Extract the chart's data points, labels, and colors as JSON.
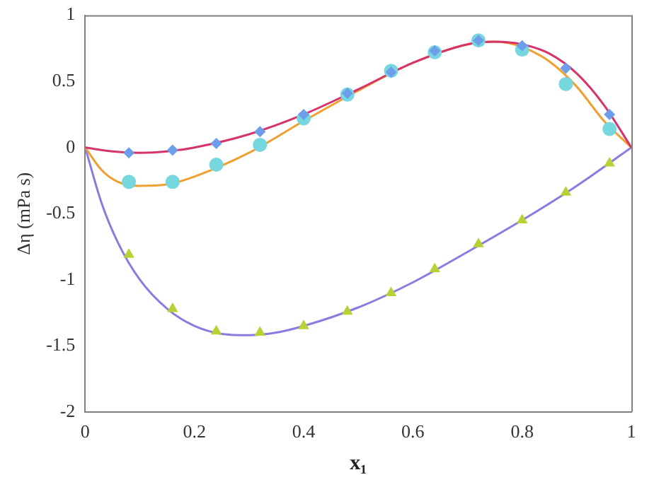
{
  "chart_data": {
    "type": "scatter",
    "xlabel": "x₁",
    "ylabel": "Δη (mPa s)",
    "xlim": [
      0,
      1
    ],
    "ylim": [
      -2,
      1
    ],
    "xticks": [
      0,
      0.2,
      0.4,
      0.6,
      0.8,
      1
    ],
    "yticks": [
      -2,
      -1.5,
      -1,
      -0.5,
      0,
      0.5,
      1
    ],
    "grid": false,
    "legend": false,
    "series": [
      {
        "type": "line",
        "marker": "none",
        "color": "#d6336c",
        "x": [
          0,
          0.05,
          0.1,
          0.15,
          0.2,
          0.3,
          0.4,
          0.5,
          0.6,
          0.7,
          0.75,
          0.8,
          0.85,
          0.9,
          0.95,
          1
        ],
        "values": [
          0,
          -0.03,
          -0.04,
          -0.03,
          0,
          0.1,
          0.25,
          0.44,
          0.64,
          0.78,
          0.8,
          0.78,
          0.71,
          0.56,
          0.32,
          0
        ]
      },
      {
        "type": "line",
        "marker": "none",
        "color": "#f0a030",
        "x": [
          0,
          0.03,
          0.06,
          0.1,
          0.15,
          0.2,
          0.3,
          0.4,
          0.5,
          0.6,
          0.7,
          0.75,
          0.8,
          0.85,
          0.9,
          0.95,
          1
        ],
        "values": [
          0,
          -0.17,
          -0.26,
          -0.29,
          -0.28,
          -0.22,
          -0.04,
          0.2,
          0.43,
          0.64,
          0.78,
          0.8,
          0.76,
          0.65,
          0.46,
          0.2,
          0
        ]
      },
      {
        "type": "line",
        "marker": "none",
        "color": "#8a7be0",
        "x": [
          0,
          0.03,
          0.06,
          0.1,
          0.15,
          0.2,
          0.25,
          0.3,
          0.35,
          0.4,
          0.5,
          0.6,
          0.7,
          0.8,
          0.9,
          1
        ],
        "values": [
          0,
          -0.42,
          -0.72,
          -1.0,
          -1.22,
          -1.35,
          -1.41,
          -1.42,
          -1.4,
          -1.35,
          -1.21,
          -1.02,
          -0.79,
          -0.55,
          -0.29,
          0
        ]
      },
      {
        "type": "scatter",
        "marker": "diamond",
        "color": "#6d9eeb",
        "x": [
          0.08,
          0.16,
          0.24,
          0.32,
          0.4,
          0.48,
          0.56,
          0.64,
          0.72,
          0.8,
          0.88,
          0.96
        ],
        "values": [
          -0.04,
          -0.02,
          0.03,
          0.12,
          0.25,
          0.41,
          0.57,
          0.73,
          0.81,
          0.77,
          0.6,
          0.25
        ]
      },
      {
        "type": "scatter",
        "marker": "circle",
        "color": "#76d7df",
        "x": [
          0.08,
          0.16,
          0.24,
          0.32,
          0.4,
          0.48,
          0.56,
          0.64,
          0.72,
          0.8,
          0.88,
          0.96
        ],
        "values": [
          -0.26,
          -0.26,
          -0.13,
          0.02,
          0.22,
          0.4,
          0.58,
          0.72,
          0.81,
          0.74,
          0.48,
          0.14
        ]
      },
      {
        "type": "scatter",
        "marker": "triangle",
        "color": "#b5d334",
        "x": [
          0.08,
          0.16,
          0.24,
          0.32,
          0.4,
          0.48,
          0.56,
          0.64,
          0.72,
          0.8,
          0.88,
          0.96
        ],
        "values": [
          -0.81,
          -1.22,
          -1.39,
          -1.4,
          -1.35,
          -1.24,
          -1.1,
          -0.92,
          -0.73,
          -0.55,
          -0.34,
          -0.12
        ]
      }
    ]
  }
}
